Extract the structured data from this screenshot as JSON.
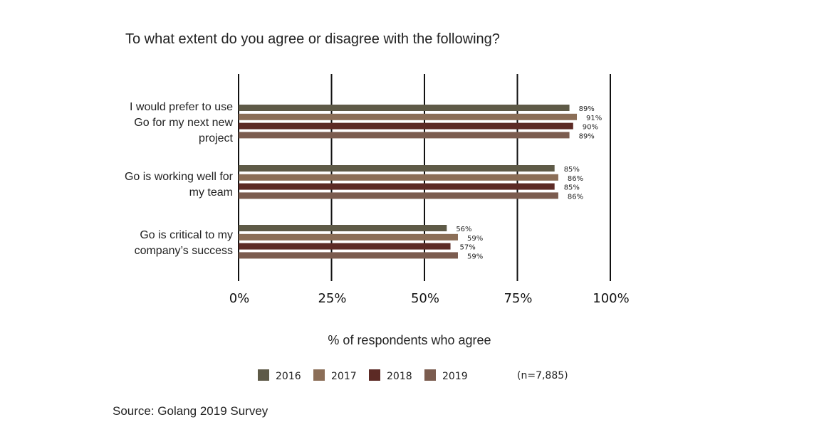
{
  "chart_data": {
    "type": "bar",
    "orientation": "horizontal",
    "title": "To what extent do you agree or disagree with the following?",
    "xlabel": "% of respondents who agree",
    "ylabel": "",
    "xlim": [
      0,
      100
    ],
    "x_ticks": [
      "0%",
      "25%",
      "50%",
      "75%",
      "100%"
    ],
    "grid": "vertical lines",
    "categories": [
      [
        "I would prefer to use",
        "Go for my next new",
        "project"
      ],
      [
        "Go is working well for",
        "my team"
      ],
      [
        "Go is critical to my",
        "company’s success"
      ]
    ],
    "series": [
      {
        "name": "2016",
        "color": "#5e5a47",
        "values": [
          89,
          85,
          56
        ],
        "labels": [
          "89%",
          "85%",
          "56%"
        ]
      },
      {
        "name": "2017",
        "color": "#8b6e57",
        "values": [
          91,
          86,
          59
        ],
        "labels": [
          "91%",
          "86%",
          "59%"
        ]
      },
      {
        "name": "2018",
        "color": "#5c2a25",
        "values": [
          90,
          85,
          57
        ],
        "labels": [
          "90%",
          "85%",
          "57%"
        ]
      },
      {
        "name": "2019",
        "color": "#7b5c4f",
        "values": [
          89,
          86,
          59
        ],
        "labels": [
          "89%",
          "86%",
          "59%"
        ]
      }
    ],
    "legend_position": "bottom",
    "note": "(n=7,885)",
    "source": "Source: Golang 2019 Survey"
  }
}
